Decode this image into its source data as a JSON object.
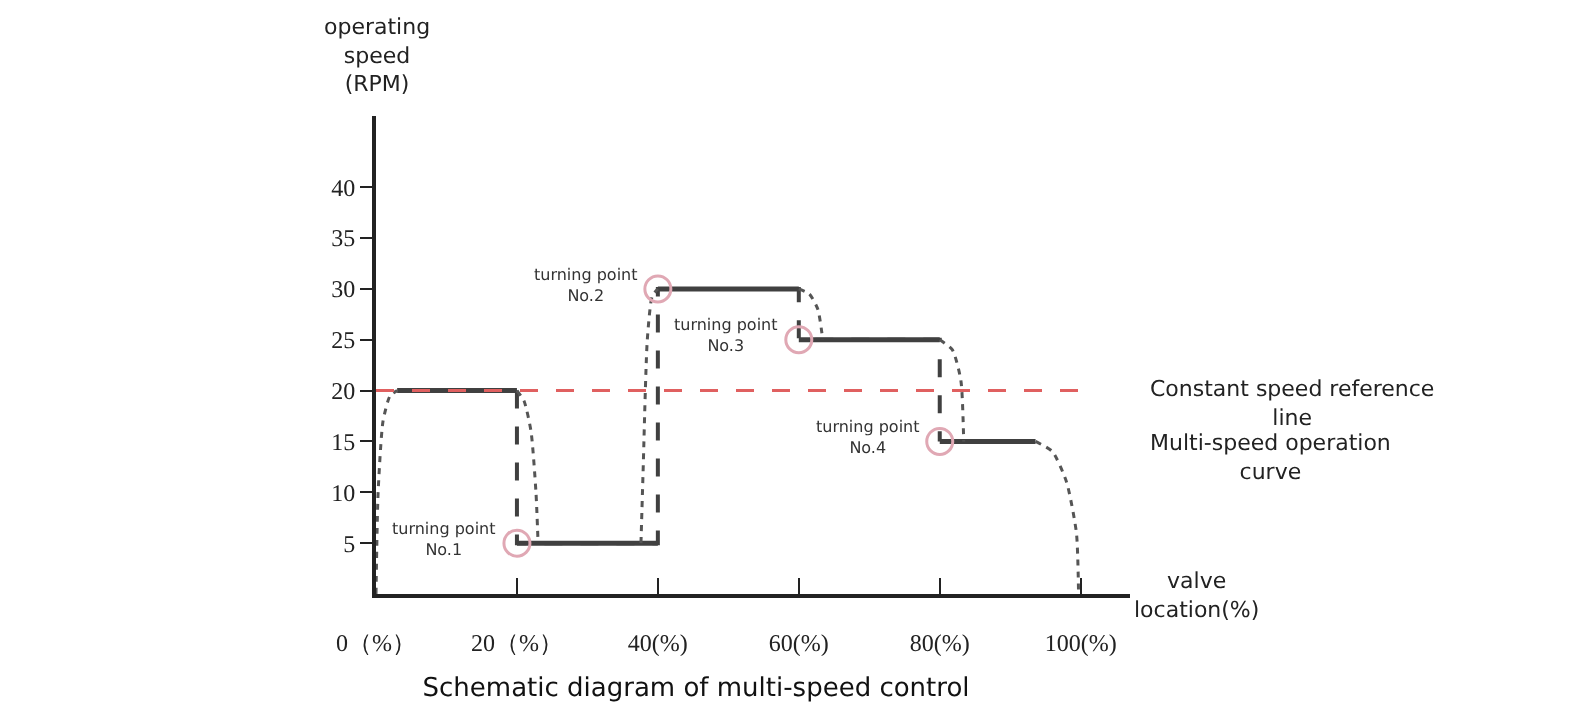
{
  "chart_data": {
    "type": "line",
    "title": "Schematic diagram of multi-speed control",
    "xlabel": "valve\nlocation(%)",
    "ylabel": "operating speed\n(RPM)",
    "xlim": [
      0,
      107
    ],
    "ylim": [
      0,
      47
    ],
    "xticks": [
      {
        "value": 0,
        "label": "0（%）"
      },
      {
        "value": 20,
        "label": "20（%）"
      },
      {
        "value": 40,
        "label": "40(%)"
      },
      {
        "value": 60,
        "label": "60(%)"
      },
      {
        "value": 80,
        "label": "80(%)"
      },
      {
        "value": 100,
        "label": "100(%)"
      }
    ],
    "yticks": [
      5,
      10,
      15,
      20,
      25,
      30,
      35,
      40
    ],
    "grid": false,
    "series": [
      {
        "type": "line",
        "color": "#404040",
        "line_style": "dashed",
        "x": [
          20,
          20,
          40,
          40,
          60,
          60,
          80,
          80
        ],
        "values": [
          20,
          5,
          5,
          30,
          30,
          25,
          25,
          15
        ]
      },
      {
        "type": "line",
        "color": "#404040",
        "line_style": "solid",
        "x": [
          3,
          20,
          null,
          20,
          40,
          null,
          40,
          60,
          null,
          60,
          80,
          null,
          80,
          93.6
        ],
        "values": [
          20,
          20,
          null,
          5,
          5,
          null,
          30,
          30,
          null,
          25,
          25,
          null,
          15,
          15
        ]
      },
      {
        "type": "line",
        "color": "#555555",
        "line_style": "dotted",
        "x": [
          0,
          0.3,
          1,
          2,
          3,
          null,
          20,
          21,
          22,
          22.7,
          23,
          null,
          37.6,
          37.9,
          38.5,
          39.2,
          40,
          null,
          60,
          61.5,
          62.7,
          63.4,
          null,
          80,
          81.8,
          83,
          83.4,
          null,
          93.6,
          96,
          98,
          99.4,
          99.7
        ],
        "values": [
          0,
          10,
          17,
          19.5,
          20,
          null,
          20,
          19,
          16,
          10,
          5,
          null,
          5,
          12,
          25,
          29.3,
          30,
          null,
          30,
          29.5,
          28,
          25,
          null,
          25,
          24,
          21,
          15,
          null,
          15,
          14,
          11,
          6,
          0
        ]
      },
      {
        "type": "scatter",
        "color": "#e0a8b4",
        "marker": "circle",
        "x": [
          20,
          40,
          60,
          80
        ],
        "values": [
          5,
          30,
          25,
          15
        ]
      }
    ],
    "ref_lines": [
      {
        "axis": "y",
        "value": 20,
        "label": "Constant speed reference line",
        "color": "#e06060",
        "line_style": "dashed"
      }
    ],
    "annotations": [
      {
        "text": "turning point\nNo.1",
        "x": 20,
        "y": 5
      },
      {
        "text": "turning point\nNo.2",
        "x": 40,
        "y": 30
      },
      {
        "text": "turning point\nNo.3",
        "x": 60,
        "y": 25
      },
      {
        "text": "turning point\nNo.4",
        "x": 80,
        "y": 15
      },
      "Multi-speed operation curve"
    ]
  }
}
